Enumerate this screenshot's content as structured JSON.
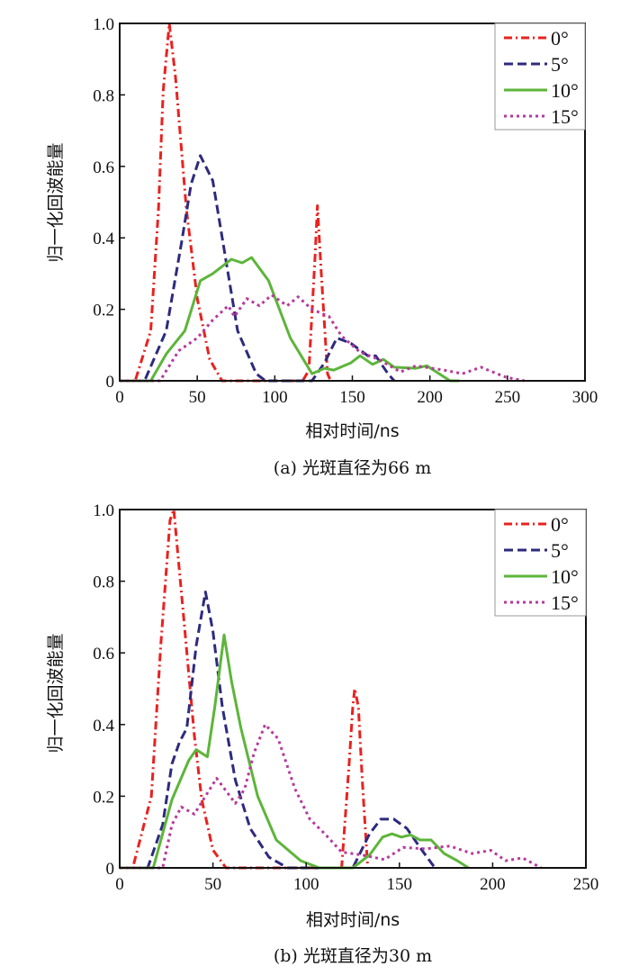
{
  "colors": {
    "0deg": "#e8221f",
    "5deg": "#2e2a7e",
    "10deg": "#5db53a",
    "15deg": "#b63a9b"
  },
  "chart_data": [
    {
      "type": "line",
      "caption": "(a) 光斑直径为66 m",
      "xlabel": "相对时间/ns",
      "ylabel": "归一化回波能量",
      "xlim": [
        0,
        300
      ],
      "ylim": [
        0,
        1.0
      ],
      "xticks": [
        "0",
        "50",
        "100",
        "150",
        "200",
        "250",
        "300"
      ],
      "yticks": [
        "0",
        "0.2",
        "0.4",
        "0.6",
        "0.8",
        "1.0"
      ],
      "legend_position": "top-right",
      "series": [
        {
          "name": "0°",
          "style": "dashdot",
          "x": [
            0,
            10,
            20,
            25,
            28,
            32,
            36,
            43,
            50,
            58,
            66,
            80,
            100,
            118,
            122,
            126,
            127.5,
            130,
            134,
            136
          ],
          "y": [
            0,
            0,
            0.14,
            0.48,
            0.81,
            1.0,
            0.85,
            0.48,
            0.23,
            0.06,
            0,
            0,
            0,
            0,
            0.03,
            0.35,
            0.49,
            0.3,
            0.02,
            0
          ]
        },
        {
          "name": "5°",
          "style": "dashed",
          "x": [
            0,
            16,
            30,
            40,
            46,
            52,
            60,
            68,
            76,
            88,
            94,
            110,
            124,
            132,
            140,
            149,
            160,
            165,
            173,
            177
          ],
          "y": [
            0,
            0,
            0.14,
            0.39,
            0.55,
            0.63,
            0.56,
            0.35,
            0.14,
            0.02,
            0,
            0,
            0,
            0.05,
            0.12,
            0.105,
            0.07,
            0.07,
            0.02,
            0
          ]
        },
        {
          "name": "10°",
          "style": "solid",
          "x": [
            0,
            20,
            30,
            42,
            52,
            60,
            72,
            79,
            85,
            96,
            110,
            124,
            132,
            138,
            149,
            155,
            163,
            170,
            177,
            191,
            198,
            213,
            219
          ],
          "y": [
            0,
            0,
            0.075,
            0.14,
            0.28,
            0.3,
            0.34,
            0.33,
            0.345,
            0.28,
            0.12,
            0.02,
            0.035,
            0.03,
            0.05,
            0.07,
            0.046,
            0.06,
            0.038,
            0.035,
            0.042,
            0,
            0
          ]
        },
        {
          "name": "15°",
          "style": "dotted",
          "x": [
            0,
            26,
            38,
            50,
            60,
            70,
            74,
            82,
            90,
            98,
            108,
            115,
            124,
            135,
            143,
            155,
            167,
            181,
            191,
            209,
            221,
            233,
            249,
            261
          ],
          "y": [
            0,
            0,
            0.084,
            0.12,
            0.17,
            0.21,
            0.18,
            0.23,
            0.21,
            0.24,
            0.21,
            0.235,
            0.2,
            0.18,
            0.126,
            0.08,
            0.06,
            0.025,
            0.042,
            0.03,
            0.02,
            0.038,
            0.01,
            0
          ]
        }
      ]
    },
    {
      "type": "line",
      "caption": "(b) 光斑直径为30 m",
      "xlabel": "相对时间/ns",
      "ylabel": "归一化回波能量",
      "xlim": [
        0,
        250
      ],
      "ylim": [
        0,
        1.0
      ],
      "xticks": [
        "0",
        "50",
        "100",
        "150",
        "200",
        "250"
      ],
      "yticks": [
        "0",
        "0.2",
        "0.4",
        "0.6",
        "0.8",
        "1.0"
      ],
      "legend_position": "top-right",
      "series": [
        {
          "name": "0°",
          "style": "dashdot",
          "x": [
            0,
            7,
            17,
            22,
            27,
            29,
            35,
            40,
            44,
            50,
            57,
            80,
            119,
            123,
            125,
            126,
            128,
            130,
            133
          ],
          "y": [
            0,
            0,
            0.2,
            0.62,
            0.97,
            1.0,
            0.66,
            0.37,
            0.19,
            0.05,
            0,
            0,
            0,
            0.29,
            0.45,
            0.5,
            0.45,
            0.25,
            0
          ]
        },
        {
          "name": "5°",
          "style": "dashed",
          "x": [
            0,
            15,
            23,
            28,
            32,
            36,
            41,
            46,
            50,
            55,
            62,
            70,
            80,
            90,
            125,
            134,
            140,
            147,
            154,
            161,
            169
          ],
          "y": [
            0,
            0,
            0.12,
            0.29,
            0.35,
            0.39,
            0.62,
            0.77,
            0.66,
            0.45,
            0.245,
            0.11,
            0.03,
            0,
            0,
            0.095,
            0.136,
            0.136,
            0.11,
            0.057,
            0
          ]
        },
        {
          "name": "10°",
          "style": "solid",
          "x": [
            0,
            18,
            28,
            37,
            41,
            47,
            51,
            56,
            60,
            65,
            74,
            84,
            97,
            107,
            125,
            134,
            141,
            146,
            151,
            156,
            161,
            167,
            174,
            181,
            187
          ],
          "y": [
            0,
            0,
            0.19,
            0.3,
            0.33,
            0.31,
            0.45,
            0.65,
            0.52,
            0.39,
            0.2,
            0.078,
            0.02,
            0,
            0,
            0.036,
            0.086,
            0.095,
            0.086,
            0.092,
            0.078,
            0.078,
            0.04,
            0.02,
            0
          ]
        },
        {
          "name": "15°",
          "style": "dotted",
          "x": [
            0,
            23,
            28,
            33,
            40,
            52,
            62,
            67,
            72,
            78,
            85,
            94,
            102,
            110,
            119,
            130,
            142,
            152,
            164,
            177,
            189,
            199,
            207,
            216,
            226
          ],
          "y": [
            0,
            0,
            0.12,
            0.17,
            0.15,
            0.25,
            0.18,
            0.22,
            0.32,
            0.4,
            0.36,
            0.22,
            0.136,
            0.095,
            0.044,
            0.036,
            0.023,
            0.057,
            0.053,
            0.061,
            0.04,
            0.049,
            0.02,
            0.028,
            0
          ]
        }
      ]
    }
  ]
}
